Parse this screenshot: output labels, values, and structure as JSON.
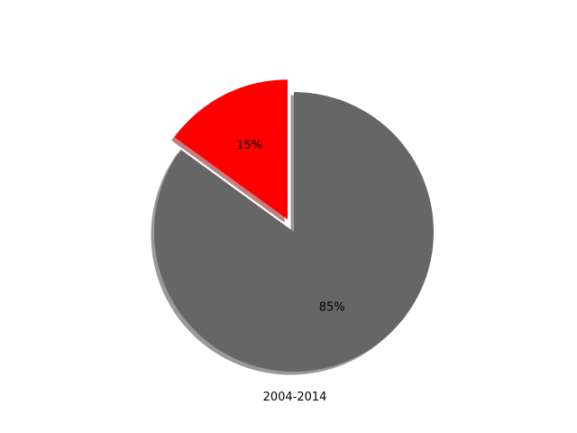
{
  "chart_data": {
    "type": "pie",
    "title": "",
    "xlabel": "2004-2014",
    "ylabel": "",
    "slices": [
      {
        "label": "",
        "value": 15,
        "pct_label": "15%",
        "color": "#ff0000",
        "exploded": true
      },
      {
        "label": "",
        "value": 85,
        "pct_label": "85%",
        "color": "#666666",
        "exploded": false
      }
    ],
    "start_angle_deg": 90,
    "direction": "counterclockwise",
    "shadow": true,
    "legend": "none",
    "grid": false
  }
}
